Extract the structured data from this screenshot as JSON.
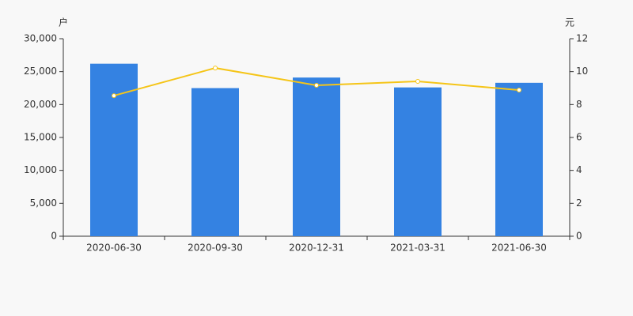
{
  "chart_data": {
    "type": "bar_line",
    "y_label": "户",
    "y2_label": "元",
    "categories": [
      "2020-06-30",
      "2020-09-30",
      "2020-12-31",
      "2021-03-31",
      "2021-06-30"
    ],
    "series": [
      {
        "type": "bar",
        "color": "#3482e2",
        "values": [
          26200,
          22500,
          24100,
          22600,
          23300
        ]
      },
      {
        "type": "line",
        "axis": "y2",
        "color": "#f5c518",
        "values": [
          8.54,
          10.22,
          9.17,
          9.41,
          8.88
        ]
      }
    ],
    "ylim": [
      0,
      30000
    ],
    "yticks": [
      0,
      {
        "value": 5000,
        "label": "5,000"
      },
      {
        "value": 10000,
        "label": "10,000"
      },
      {
        "value": 15000,
        "label": "15,000"
      },
      {
        "value": 20000,
        "label": "20,000"
      },
      {
        "value": 25000,
        "label": "25,000"
      },
      {
        "value": 30000,
        "label": "30,000"
      }
    ],
    "y2lim": [
      0,
      12
    ],
    "y2ticks": [
      0,
      2,
      4,
      6,
      8,
      10,
      12
    ]
  }
}
